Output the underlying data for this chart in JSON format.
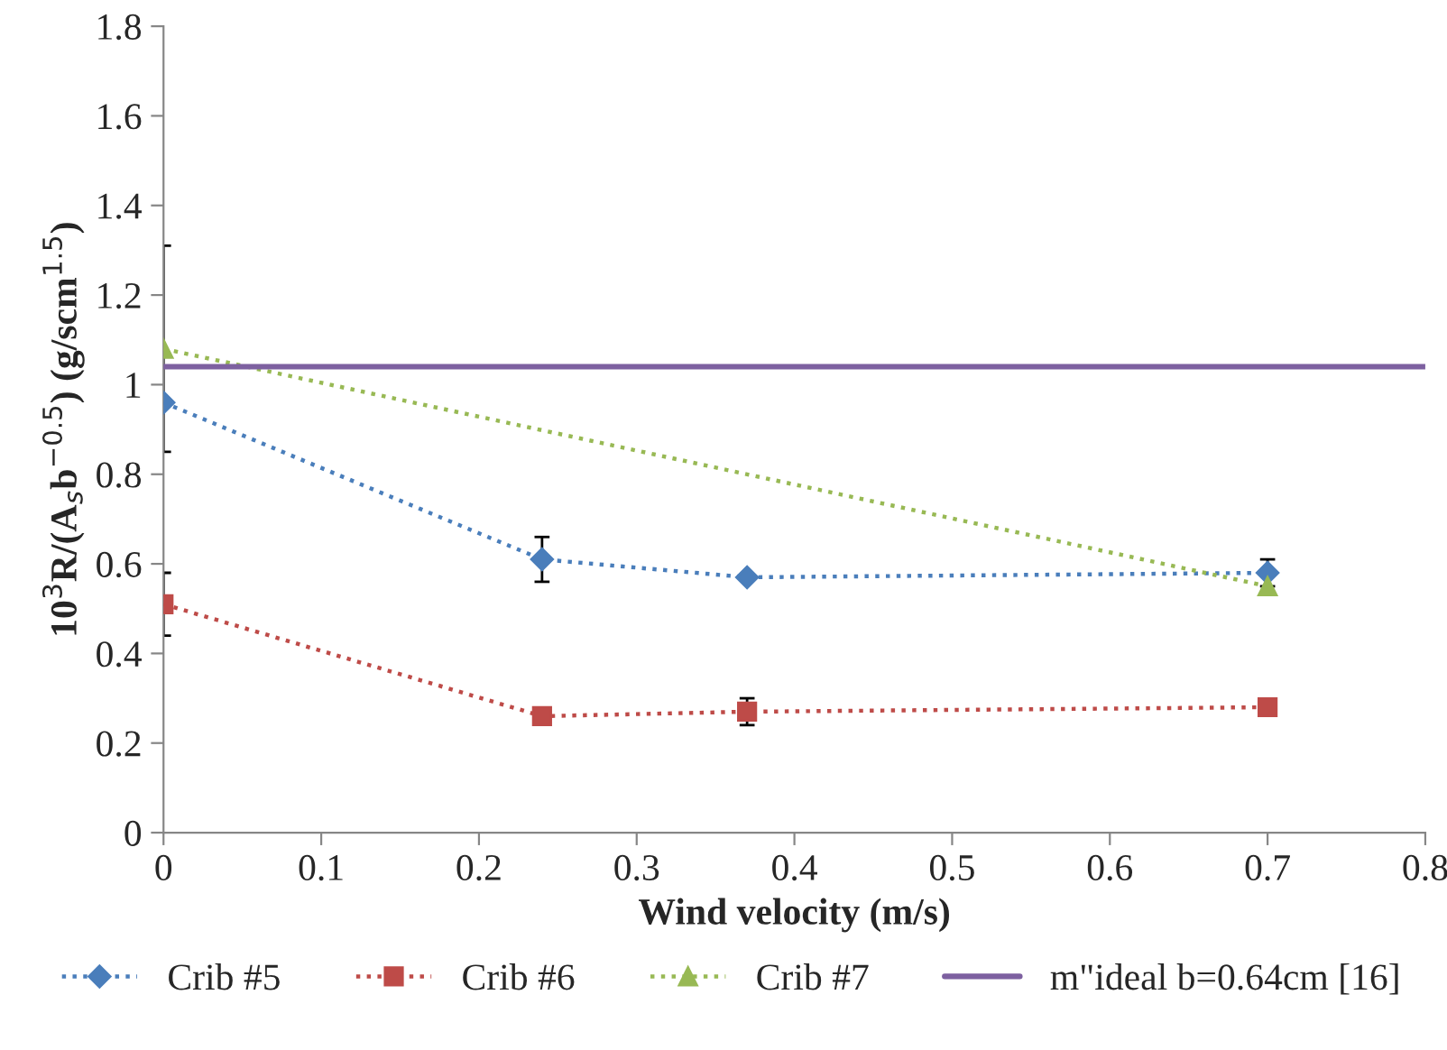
{
  "chart_data": {
    "type": "line",
    "xlabel": "Wind velocity (m/s)",
    "ylabel": "10$^{3}$R/(A$_{s}$b$^{−0.5}$) (g/scm$^{1.5}$)",
    "xlim": [
      0,
      0.8
    ],
    "xticks": [
      0,
      0.1,
      0.2,
      0.3,
      0.4,
      0.5,
      0.6,
      0.7,
      0.8
    ],
    "ylim": [
      0,
      1.8
    ],
    "yticks": [
      0,
      0.2,
      0.4,
      0.6,
      0.8,
      1,
      1.2,
      1.4,
      1.6,
      1.8
    ],
    "grid": false,
    "legend": "bottom",
    "series": [
      {
        "name": "Crib #5",
        "color": "#4a7ebb",
        "marker": "diamond",
        "line_style": "dotted",
        "x": [
          0,
          0.24,
          0.37,
          0.7
        ],
        "values": [
          0.96,
          0.61,
          0.57,
          0.58
        ],
        "errors": [
          null,
          0.05,
          null,
          0.03
        ]
      },
      {
        "name": "Crib #6",
        "color": "#be4b48",
        "marker": "square",
        "line_style": "dotted",
        "x": [
          0,
          0.24,
          0.37,
          0.7
        ],
        "values": [
          0.51,
          0.26,
          0.27,
          0.28
        ],
        "errors": [
          0.07,
          null,
          0.03,
          null
        ]
      },
      {
        "name": "Crib #7",
        "color": "#98b954",
        "marker": "triangle",
        "line_style": "dotted",
        "x": [
          0,
          0.7
        ],
        "values": [
          1.08,
          0.55
        ],
        "errors": [
          0.23,
          null
        ]
      },
      {
        "name": "m\"ideal b=0.64cm [16]",
        "color": "#7d60a0",
        "marker": "none",
        "line_style": "solid",
        "x": [
          0,
          0.8
        ],
        "values": [
          1.04,
          1.04
        ]
      }
    ]
  }
}
